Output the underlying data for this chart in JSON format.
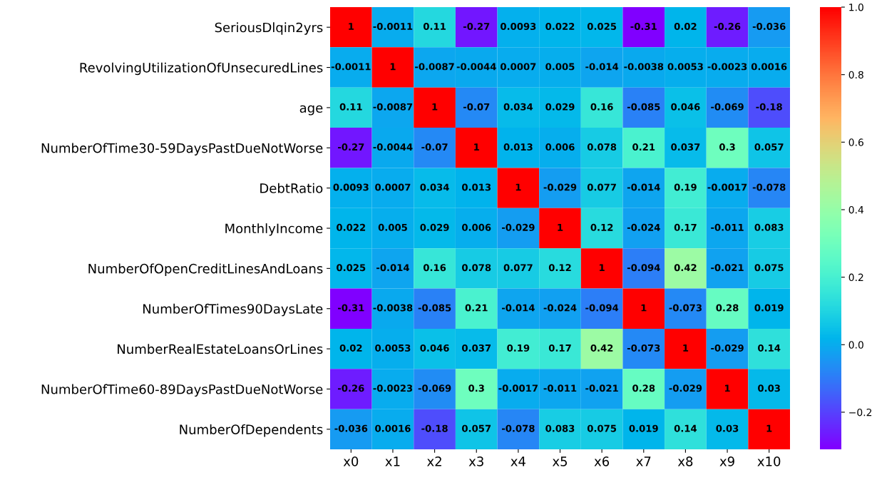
{
  "chart_data": {
    "type": "heatmap",
    "categories": [
      "x0",
      "x1",
      "x2",
      "x3",
      "x4",
      "x5",
      "x6",
      "x7",
      "x8",
      "x9",
      "x10"
    ],
    "y_categories": [
      "SeriousDlqin2yrs",
      "RevolvingUtilizationOfUnsecuredLines",
      "age",
      "NumberOfTime30-59DaysPastDueNotWorse",
      "DebtRatio",
      "MonthlyIncome",
      "NumberOfOpenCreditLinesAndLoans",
      "NumberOfTimes90DaysLate",
      "NumberRealEstateLoansOrLines",
      "NumberOfTime60-89DaysPastDueNotWorse",
      "NumberOfDependents"
    ],
    "cells": [
      [
        1,
        -0.0011,
        0.11,
        -0.27,
        0.0093,
        0.022,
        0.025,
        -0.31,
        0.02,
        -0.26,
        -0.036
      ],
      [
        -0.0011,
        1,
        -0.0087,
        -0.0044,
        0.0007,
        0.005,
        -0.014,
        -0.0038,
        0.0053,
        -0.0023,
        0.0016
      ],
      [
        0.11,
        -0.0087,
        1,
        -0.07,
        0.034,
        0.029,
        0.16,
        -0.085,
        0.046,
        -0.069,
        -0.18
      ],
      [
        -0.27,
        -0.0044,
        -0.07,
        1,
        0.013,
        0.006,
        0.078,
        0.21,
        0.037,
        0.3,
        0.057
      ],
      [
        0.0093,
        0.0007,
        0.034,
        0.013,
        1,
        -0.029,
        0.077,
        -0.014,
        0.19,
        -0.0017,
        -0.078
      ],
      [
        0.022,
        0.005,
        0.029,
        0.006,
        -0.029,
        1,
        0.12,
        -0.024,
        0.17,
        -0.011,
        0.083
      ],
      [
        0.025,
        -0.014,
        0.16,
        0.078,
        0.077,
        0.12,
        1,
        -0.094,
        0.42,
        -0.021,
        0.075
      ],
      [
        -0.31,
        -0.0038,
        -0.085,
        0.21,
        -0.014,
        -0.024,
        -0.094,
        1,
        -0.073,
        0.28,
        0.019
      ],
      [
        0.02,
        0.0053,
        0.046,
        0.037,
        0.19,
        0.17,
        0.42,
        -0.073,
        1,
        -0.029,
        0.14
      ],
      [
        -0.26,
        -0.0023,
        -0.069,
        0.3,
        -0.0017,
        -0.011,
        -0.021,
        0.28,
        -0.029,
        1,
        0.03
      ],
      [
        -0.036,
        0.0016,
        -0.18,
        0.057,
        -0.078,
        0.083,
        0.075,
        0.019,
        0.14,
        0.03,
        1
      ]
    ],
    "clim": [
      -0.31,
      1
    ],
    "cticks": [
      {
        "value": -0.2,
        "label": "−0.2"
      },
      {
        "value": 0,
        "label": "0.0"
      },
      {
        "value": 0.2,
        "label": "0.2"
      },
      {
        "value": 0.4,
        "label": "0.4"
      },
      {
        "value": 0.6,
        "label": "0.6"
      },
      {
        "value": 0.8,
        "label": "0.8"
      },
      {
        "value": 1,
        "label": "1.0"
      }
    ],
    "data_labels": true
  }
}
